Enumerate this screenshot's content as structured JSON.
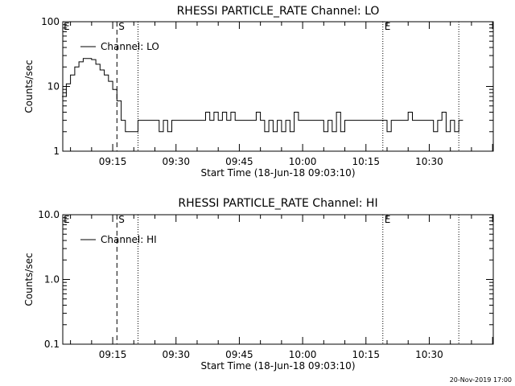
{
  "footer_timestamp": "20-Nov-2019 17:00",
  "chart_data": [
    {
      "type": "line",
      "title": "RHESSI PARTICLE_RATE Channel: LO",
      "xlabel": "Start Time (18-Jun-18 09:03:10)",
      "ylabel": "Counts/sec",
      "y_scale": "log",
      "ylim": [
        1,
        100
      ],
      "y_ticks": [
        "1",
        "10",
        "100"
      ],
      "x_ticks": [
        "09:15",
        "09:30",
        "09:45",
        "10:00",
        "10:15",
        "10:30"
      ],
      "legend": "Channel: LO",
      "legend_placement": "top-left",
      "markers": [
        {
          "label": "E",
          "time": "09:03",
          "style": "none"
        },
        {
          "label": "S",
          "time": "09:16",
          "style": "dashed"
        },
        {
          "label": "",
          "time": "09:21",
          "style": "dotted"
        },
        {
          "label": "E",
          "time": "10:19",
          "style": "dotted"
        },
        {
          "label": "",
          "time": "10:37",
          "style": "dotted"
        }
      ],
      "series": [
        {
          "x": [
            "09:03",
            "09:04",
            "09:05",
            "09:06",
            "09:07",
            "09:08",
            "09:09",
            "09:10",
            "09:11",
            "09:12",
            "09:13",
            "09:14",
            "09:15",
            "09:16",
            "09:17",
            "09:18",
            "09:19",
            "09:20",
            "09:21",
            "09:22",
            "09:23",
            "09:24",
            "09:25",
            "09:26",
            "09:27",
            "09:28",
            "09:29",
            "09:30",
            "09:36",
            "09:37",
            "09:38",
            "09:39",
            "09:40",
            "09:41",
            "09:42",
            "09:43",
            "09:44",
            "09:45",
            "09:48",
            "09:49",
            "09:50",
            "09:51",
            "09:52",
            "09:53",
            "09:54",
            "09:55",
            "09:56",
            "09:57",
            "09:58",
            "09:59",
            "10:00",
            "10:01",
            "10:02",
            "10:03",
            "10:04",
            "10:05",
            "10:06",
            "10:07",
            "10:08",
            "10:09",
            "10:10",
            "10:19",
            "10:20",
            "10:21",
            "10:24",
            "10:25",
            "10:26",
            "10:30",
            "10:31",
            "10:32",
            "10:33",
            "10:34",
            "10:35",
            "10:36",
            "10:37"
          ],
          "values": [
            7,
            11,
            15,
            20,
            24,
            27,
            27,
            26,
            22,
            18,
            15,
            12,
            9,
            6,
            3,
            2,
            2,
            2,
            3,
            3,
            3,
            3,
            3,
            2,
            3,
            2,
            3,
            3,
            3,
            4,
            3,
            4,
            3,
            4,
            3,
            4,
            3,
            3,
            3,
            4,
            3,
            2,
            3,
            2,
            3,
            2,
            3,
            2,
            4,
            3,
            3,
            3,
            3,
            3,
            3,
            2,
            3,
            2,
            4,
            2,
            3,
            3,
            2,
            3,
            3,
            4,
            3,
            3,
            2,
            3,
            4,
            2,
            3,
            2,
            3
          ]
        }
      ]
    },
    {
      "type": "line",
      "title": "RHESSI PARTICLE_RATE Channel: HI",
      "xlabel": "Start Time (18-Jun-18 09:03:10)",
      "ylabel": "Counts/sec",
      "y_scale": "log",
      "ylim": [
        0.1,
        10
      ],
      "y_ticks": [
        "0.1",
        "1.0",
        "10.0"
      ],
      "x_ticks": [
        "09:15",
        "09:30",
        "09:45",
        "10:00",
        "10:15",
        "10:30"
      ],
      "legend": "Channel: HI",
      "legend_placement": "top-left",
      "markers": [
        {
          "label": "E",
          "time": "09:03",
          "style": "none"
        },
        {
          "label": "S",
          "time": "09:16",
          "style": "dashed"
        },
        {
          "label": "",
          "time": "09:21",
          "style": "dotted"
        },
        {
          "label": "E",
          "time": "10:19",
          "style": "dotted"
        },
        {
          "label": "",
          "time": "10:37",
          "style": "dotted"
        }
      ],
      "series": []
    }
  ]
}
